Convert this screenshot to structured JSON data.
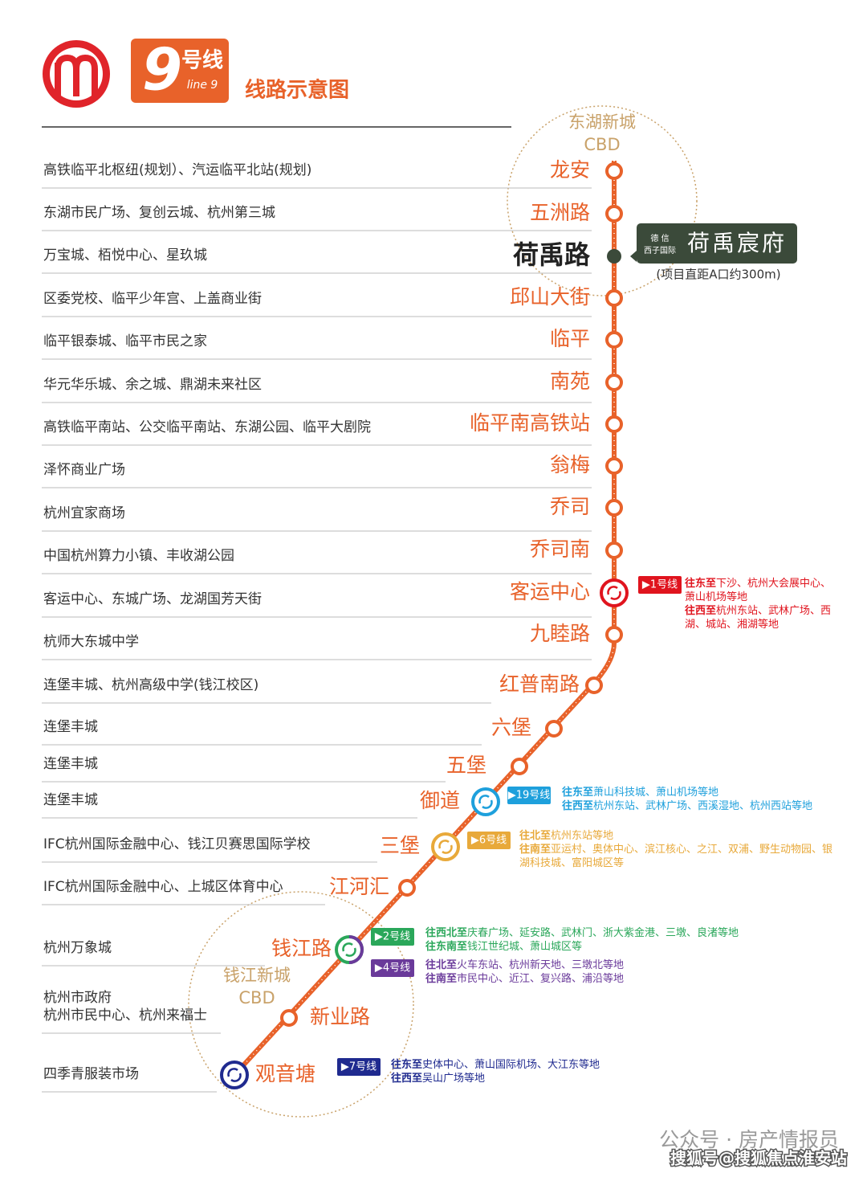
{
  "header": {
    "line_number": "9",
    "line_suffix": "号线",
    "line_en": "line 9",
    "title": "线路示意图"
  },
  "line_color": "#e8622a",
  "cbd_areas": [
    {
      "name": "东湖新城",
      "sub": "CBD"
    },
    {
      "name": "钱江新城",
      "sub": "CBD"
    }
  ],
  "project": {
    "developer_top": "德 信",
    "developer_bottom": "西子国际",
    "name": "荷禹宸府",
    "note": "(项目直距A口约300m)"
  },
  "stations": [
    {
      "name": "龙安",
      "landmarks": [
        "高铁临平北枢纽(规划）、汽运临平北站(规划)"
      ]
    },
    {
      "name": "五洲路",
      "landmarks": [
        "东湖市民广场、复创云城、杭州第三城"
      ]
    },
    {
      "name": "荷禹路",
      "landmarks": [
        "万宝城、栢悦中心、星玖城"
      ]
    },
    {
      "name": "邱山大街",
      "landmarks": [
        "区委党校、临平少年宫、上盖商业街"
      ]
    },
    {
      "name": "临平",
      "landmarks": [
        "临平银泰城、临平市民之家"
      ]
    },
    {
      "name": "南苑",
      "landmarks": [
        "华元华乐城、余之城、鼎湖未来社区"
      ]
    },
    {
      "name": "临平南高铁站",
      "landmarks": [
        "高铁临平南站、公交临平南站、东湖公园、临平大剧院"
      ]
    },
    {
      "name": "翁梅",
      "landmarks": [
        "泽怀商业广场"
      ]
    },
    {
      "name": "乔司",
      "landmarks": [
        "杭州宜家商场"
      ]
    },
    {
      "name": "乔司南",
      "landmarks": [
        "中国杭州算力小镇、丰收湖公园"
      ]
    },
    {
      "name": "客运中心",
      "landmarks": [
        "客运中心、东城广场、龙湖国芳天街"
      ],
      "transfers": [
        {
          "line": "▶1号线",
          "color": "#e0141e",
          "directions": [
            {
              "dir": "往东至",
              "dest": "下沙、杭州大会展中心、萧山机场等地"
            },
            {
              "dir": "往西至",
              "dest": "杭州东站、武林广场、西湖、城站、湘湖等地"
            }
          ]
        }
      ]
    },
    {
      "name": "九睦路",
      "landmarks": [
        "杭师大东城中学"
      ]
    },
    {
      "name": "红普南路",
      "landmarks": [
        "连堡丰城、杭州高级中学(钱江校区)"
      ]
    },
    {
      "name": "六堡",
      "landmarks": [
        "连堡丰城"
      ]
    },
    {
      "name": "五堡",
      "landmarks": [
        "连堡丰城"
      ]
    },
    {
      "name": "御道",
      "landmarks": [
        "连堡丰城"
      ],
      "transfers": [
        {
          "line": "▶19号线",
          "color": "#1ea0dc",
          "directions": [
            {
              "dir": "往东至",
              "dest": "萧山科技城、萧山机场等地"
            },
            {
              "dir": "往西至",
              "dest": "杭州东站、武林广场、西溪湿地、杭州西站等地"
            }
          ]
        }
      ]
    },
    {
      "name": "三堡",
      "landmarks": [
        "IFC杭州国际金融中心、钱江贝赛思国际学校"
      ],
      "transfers": [
        {
          "line": "▶6号线",
          "color": "#e8a93a",
          "directions": [
            {
              "dir": "往北至",
              "dest": "杭州东站等地"
            },
            {
              "dir": "往南至",
              "dest": "亚运村、奥体中心、滨江核心、之江、双浦、野生动物园、银湖科技城、富阳城区等"
            }
          ]
        }
      ]
    },
    {
      "name": "江河汇",
      "landmarks": [
        "IFC杭州国际金融中心、上城区体育中心"
      ]
    },
    {
      "name": "钱江路",
      "landmarks": [
        "杭州万象城"
      ],
      "transfers": [
        {
          "line": "▶2号线",
          "color": "#2aa75a",
          "directions": [
            {
              "dir": "往西北至",
              "dest": "庆春广场、延安路、武林门、浙大紫金港、三墩、良渚等地"
            },
            {
              "dir": "往东南至",
              "dest": "钱江世纪城、萧山城区等"
            }
          ]
        },
        {
          "line": "▶4号线",
          "color": "#6a3a9a",
          "directions": [
            {
              "dir": "往北至",
              "dest": "火车东站、杭州新天地、三墩北等地"
            },
            {
              "dir": "往南至",
              "dest": "市民中心、近江、复兴路、浦沿等地"
            }
          ]
        }
      ]
    },
    {
      "name": "新业路",
      "landmarks": [
        "杭州市政府",
        "杭州市民中心、杭州来福士"
      ]
    },
    {
      "name": "观音塘",
      "landmarks": [
        "四季青服装市场"
      ],
      "transfers": [
        {
          "line": "▶7号线",
          "color": "#1f2a8f",
          "directions": [
            {
              "dir": "往东至",
              "dest": "史体中心、萧山国际机场、大江东等地"
            },
            {
              "dir": "往西至",
              "dest": "吴山广场等地"
            }
          ]
        }
      ]
    }
  ],
  "watermark": {
    "account": "公众号 · 房产情报员",
    "source": "搜狐号@搜狐焦点淮安站"
  }
}
